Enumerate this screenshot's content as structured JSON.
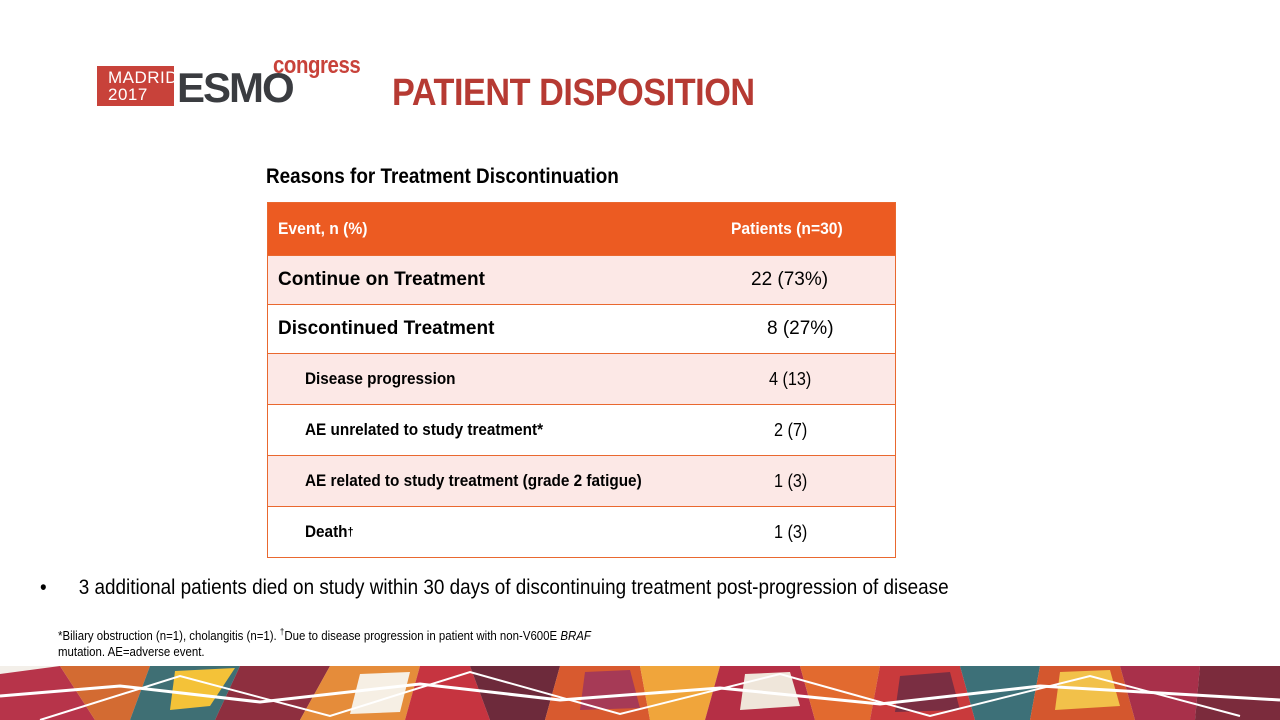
{
  "logo": {
    "city": "MADRID",
    "year": "2017",
    "brand": "ESMO",
    "suffix": "congress"
  },
  "title": "PATIENT DISPOSITION",
  "table_heading": "Reasons for Treatment Discontinuation",
  "table": {
    "header": {
      "event": "Event, n (%)",
      "patients": "Patients (n=30)"
    },
    "rows": [
      {
        "event": "Continue on Treatment",
        "value": "22 (73%)"
      },
      {
        "event": "Discontinued Treatment",
        "value": "8 (27%)"
      },
      {
        "event": "Disease progression",
        "value": "4 (13)"
      },
      {
        "event": "AE unrelated to study treatment*",
        "value": "2 (7)"
      },
      {
        "event": "AE related to study treatment (grade 2 fatigue)",
        "value": "1 (3)"
      },
      {
        "event": "Death",
        "event_sup": "†",
        "value": "1 (3)"
      }
    ]
  },
  "bullet": {
    "marker": "•",
    "text": "3 additional patients died on study within 30 days of discontinuing treatment  post-progression of disease"
  },
  "footnote": {
    "part1": "*Biliary obstruction (n=1), cholangitis (n=1). ",
    "dagger": "†",
    "part2": "Due to disease progression in patient with non-V600E ",
    "gene": "BRAF",
    "part3": "mutation. AE=adverse event."
  },
  "colors": {
    "title": "#b63a33",
    "table_header": "#ec5b22",
    "row_tint": "#fce8e6",
    "border": "#e9682f"
  }
}
